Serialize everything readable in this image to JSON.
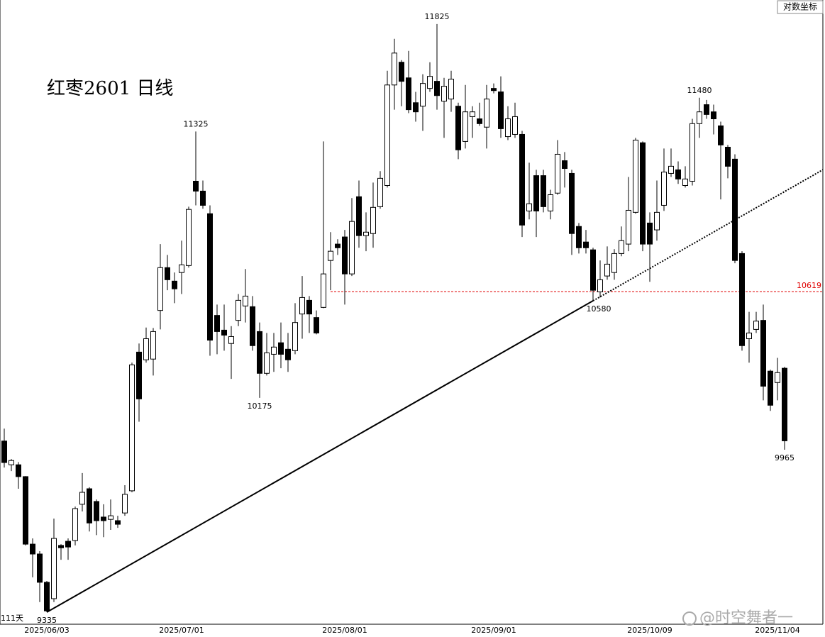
{
  "chart_data": {
    "type": "candlestick",
    "title": "红枣2601 日线",
    "scale_button": "对数坐标",
    "day_count_label": "111天",
    "watermark": "@时空舞者一",
    "log_scale": true,
    "ylim": [
      9290,
      11940
    ],
    "up_color": "#ffffff",
    "down_color": "#000000",
    "price_line": {
      "value": 10619,
      "color": "#e00000"
    },
    "high_labels": [
      11825,
      11325,
      11480
    ],
    "low_labels": [
      9335,
      10175,
      10580,
      9965
    ],
    "categories": [
      null,
      null,
      null,
      null,
      null,
      null,
      "2025/06/03",
      null,
      null,
      null,
      null,
      null,
      null,
      null,
      null,
      null,
      null,
      null,
      null,
      null,
      null,
      null,
      null,
      null,
      null,
      "2025/07/01",
      null,
      null,
      null,
      null,
      null,
      null,
      null,
      null,
      null,
      null,
      null,
      null,
      null,
      null,
      null,
      null,
      null,
      null,
      null,
      null,
      null,
      null,
      "2025/08/01",
      null,
      null,
      null,
      null,
      null,
      null,
      null,
      null,
      null,
      null,
      null,
      null,
      null,
      null,
      null,
      null,
      null,
      null,
      null,
      null,
      "2025/09/01",
      null,
      null,
      null,
      null,
      null,
      null,
      null,
      null,
      null,
      null,
      null,
      null,
      null,
      null,
      null,
      null,
      null,
      null,
      null,
      null,
      null,
      "2025/10/09",
      null,
      null,
      null,
      null,
      null,
      null,
      null,
      null,
      null,
      null,
      null,
      null,
      null,
      null,
      null,
      null,
      null,
      "2025/11/04",
      null
    ],
    "open": [
      10000,
      9905,
      9905,
      9858,
      9594,
      9556,
      9448,
      9386,
      9589,
      9605,
      9608,
      9749,
      9810,
      9760,
      9699,
      9690,
      9685,
      9715,
      9802,
      10364,
      10332,
      10335,
      10539,
      10722,
      10664,
      10701,
      10731,
      11101,
      11057,
      10957,
      10518,
      10456,
      10400,
      10497,
      10558,
      10555,
      10450,
      10276,
      10355,
      10403,
      10376,
      10370,
      10524,
      10582,
      10509,
      10552,
      10753,
      10824,
      10855,
      10695,
      11032,
      10861,
      10870,
      10988,
      11082,
      11539,
      11645,
      11572,
      11457,
      11441,
      11523,
      11556,
      11464,
      11474,
      11441,
      11280,
      11393,
      11383,
      11345,
      11523,
      11507,
      11302,
      11312,
      11312,
      10969,
      11126,
      11126,
      10969,
      11048,
      11193,
      11136,
      10901,
      10833,
      10799,
      10618,
      10686,
      10701,
      10783,
      10824,
      10963,
      11274,
      10916,
      10886,
      10994,
      11136,
      11152,
      11082,
      11101,
      11361,
      11448,
      11415,
      11351,
      11254,
      11200,
      10783,
      10420,
      10459,
      10497,
      10285,
      10238,
      10297
    ],
    "high": [
      10050,
      9928,
      9916,
      9860,
      9616,
      9567,
      9453,
      9693,
      9594,
      9616,
      9740,
      9872,
      9816,
      9768,
      9749,
      9768,
      9704,
      9824,
      10320,
      10400,
      10467,
      10465,
      10824,
      10777,
      10701,
      10839,
      10988,
      11325,
      11104,
      10994,
      10564,
      10564,
      10473,
      10609,
      10716,
      10600,
      10488,
      10444,
      10444,
      10488,
      10444,
      10570,
      10686,
      10600,
      10539,
      11280,
      10876,
      10845,
      10886,
      11026,
      11104,
      10963,
      11095,
      11146,
      11605,
      11755,
      11655,
      11698,
      11507,
      11589,
      11645,
      11825,
      11572,
      11605,
      11457,
      11539,
      11441,
      11457,
      11539,
      11546,
      11579,
      11441,
      11457,
      11328,
      11184,
      11152,
      11152,
      11063,
      11286,
      11232,
      11152,
      10916,
      10886,
      10808,
      10753,
      10814,
      10802,
      10901,
      11120,
      11296,
      11280,
      10963,
      11104,
      11248,
      11248,
      11190,
      11168,
      11383,
      11480,
      11470,
      11448,
      11370,
      11264,
      11222,
      10793,
      10533,
      10533,
      10564,
      10291,
      10340,
      10303
    ],
    "low": [
      9894,
      9880,
      9810,
      9589,
      9467,
      9373,
      9335,
      9373,
      9534,
      9534,
      9589,
      9721,
      9643,
      9629,
      9621,
      9649,
      9657,
      9704,
      9796,
      10078,
      10320,
      10267,
      10459,
      10625,
      10570,
      10609,
      10722,
      10994,
      10979,
      10349,
      10355,
      10370,
      10253,
      10473,
      10488,
      10370,
      10175,
      10267,
      10282,
      10297,
      10282,
      10355,
      10420,
      10444,
      10438,
      10549,
      10625,
      10777,
      10564,
      10686,
      10808,
      10793,
      10808,
      10979,
      11073,
      11425,
      11441,
      11409,
      11370,
      11328,
      11507,
      11425,
      11296,
      11415,
      11200,
      11248,
      11296,
      11351,
      11248,
      11500,
      11296,
      11286,
      11296,
      10855,
      10932,
      10855,
      10963,
      10932,
      11041,
      11073,
      10777,
      10783,
      10783,
      10580,
      10594,
      10670,
      10670,
      10771,
      10793,
      10957,
      10793,
      10661,
      10839,
      10969,
      11120,
      11089,
      11073,
      11082,
      11296,
      11383,
      11312,
      11020,
      11114,
      10741,
      10370,
      10320,
      10444,
      10165,
      10122,
      10165,
      9965
    ],
    "close": [
      9914,
      9922,
      9858,
      9594,
      9556,
      9448,
      9340,
      9616,
      9580,
      9583,
      9732,
      9796,
      9676,
      9685,
      9685,
      9704,
      9671,
      9788,
      10311,
      10171,
      10420,
      10450,
      10722,
      10670,
      10631,
      10734,
      10976,
      11057,
      10994,
      10414,
      10450,
      10435,
      10429,
      10582,
      10600,
      10391,
      10276,
      10361,
      10385,
      10355,
      10332,
      10488,
      10594,
      10524,
      10444,
      10695,
      10793,
      10808,
      10695,
      10923,
      10861,
      10876,
      10985,
      11114,
      11539,
      11688,
      11556,
      11425,
      11415,
      11546,
      11579,
      11490,
      11533,
      11566,
      11242,
      11415,
      11415,
      11361,
      11474,
      11513,
      11338,
      11383,
      11393,
      10907,
      11001,
      10969,
      10988,
      11041,
      11222,
      11158,
      10870,
      10808,
      10808,
      10625,
      10670,
      10737,
      10783,
      10839,
      10972,
      11286,
      10824,
      10824,
      10963,
      11142,
      11168,
      11111,
      11111,
      11361,
      11415,
      11403,
      11383,
      11264,
      11168,
      10753,
      10391,
      10444,
      10494,
      10223,
      10145,
      10279,
      10001
    ]
  }
}
